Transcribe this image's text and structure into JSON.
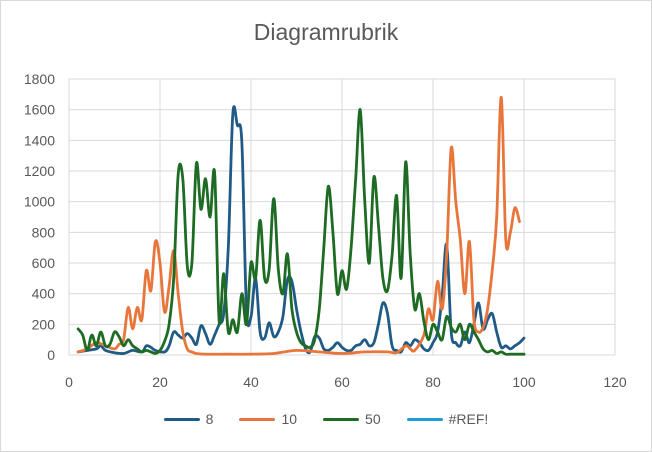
{
  "chart_data": {
    "type": "line",
    "title": "Diagramrubrik",
    "xlabel": "",
    "ylabel": "",
    "xlim": [
      0,
      120
    ],
    "ylim": [
      0,
      1800
    ],
    "x_ticks": [
      0,
      20,
      40,
      60,
      80,
      100,
      120
    ],
    "y_ticks": [
      0,
      200,
      400,
      600,
      800,
      1000,
      1200,
      1400,
      1600,
      1800
    ],
    "grid": "horizontal and vertical",
    "legend_position": "bottom",
    "smooth": true,
    "series": [
      {
        "name": "8",
        "color": "#1f5b86",
        "points": [
          [
            2,
            20
          ],
          [
            4,
            30
          ],
          [
            6,
            40
          ],
          [
            7,
            60
          ],
          [
            8,
            30
          ],
          [
            10,
            15
          ],
          [
            12,
            10
          ],
          [
            14,
            30
          ],
          [
            16,
            20
          ],
          [
            17,
            60
          ],
          [
            18,
            50
          ],
          [
            19,
            30
          ],
          [
            21,
            20
          ],
          [
            22,
            60
          ],
          [
            23,
            150
          ],
          [
            24,
            130
          ],
          [
            25,
            110
          ],
          [
            26,
            140
          ],
          [
            27,
            110
          ],
          [
            28,
            70
          ],
          [
            29,
            190
          ],
          [
            30,
            140
          ],
          [
            31,
            70
          ],
          [
            32,
            130
          ],
          [
            33,
            200
          ],
          [
            34,
            270
          ],
          [
            35,
            700
          ],
          [
            36,
            1570
          ],
          [
            37,
            1500
          ],
          [
            38,
            1380
          ],
          [
            39,
            300
          ],
          [
            40,
            250
          ],
          [
            41,
            500
          ],
          [
            42,
            150
          ],
          [
            43,
            110
          ],
          [
            44,
            210
          ],
          [
            45,
            120
          ],
          [
            46,
            150
          ],
          [
            47,
            250
          ],
          [
            48,
            490
          ],
          [
            49,
            480
          ],
          [
            50,
            300
          ],
          [
            51,
            150
          ],
          [
            52,
            40
          ],
          [
            53,
            20
          ],
          [
            54,
            120
          ],
          [
            55,
            110
          ],
          [
            56,
            40
          ],
          [
            57,
            30
          ],
          [
            58,
            50
          ],
          [
            59,
            80
          ],
          [
            60,
            50
          ],
          [
            61,
            30
          ],
          [
            62,
            30
          ],
          [
            63,
            60
          ],
          [
            64,
            70
          ],
          [
            65,
            100
          ],
          [
            66,
            60
          ],
          [
            67,
            80
          ],
          [
            68,
            200
          ],
          [
            69,
            340
          ],
          [
            70,
            270
          ],
          [
            71,
            60
          ],
          [
            72,
            30
          ],
          [
            73,
            20
          ],
          [
            74,
            80
          ],
          [
            75,
            60
          ],
          [
            76,
            100
          ],
          [
            77,
            80
          ],
          [
            78,
            40
          ],
          [
            79,
            30
          ],
          [
            80,
            80
          ],
          [
            81,
            150
          ],
          [
            82,
            380
          ],
          [
            83,
            720
          ],
          [
            84,
            150
          ],
          [
            85,
            80
          ],
          [
            86,
            60
          ],
          [
            87,
            150
          ],
          [
            88,
            80
          ],
          [
            89,
            200
          ],
          [
            90,
            340
          ],
          [
            91,
            170
          ],
          [
            92,
            230
          ],
          [
            93,
            270
          ],
          [
            94,
            150
          ],
          [
            95,
            50
          ],
          [
            96,
            60
          ],
          [
            97,
            40
          ],
          [
            98,
            60
          ],
          [
            99,
            80
          ],
          [
            100,
            110
          ]
        ]
      },
      {
        "name": "10",
        "color": "#e8763a",
        "points": [
          [
            2,
            20
          ],
          [
            4,
            40
          ],
          [
            6,
            80
          ],
          [
            8,
            60
          ],
          [
            10,
            40
          ],
          [
            11,
            70
          ],
          [
            12,
            100
          ],
          [
            13,
            310
          ],
          [
            14,
            170
          ],
          [
            15,
            310
          ],
          [
            16,
            230
          ],
          [
            17,
            550
          ],
          [
            18,
            420
          ],
          [
            19,
            740
          ],
          [
            20,
            600
          ],
          [
            21,
            280
          ],
          [
            22,
            450
          ],
          [
            23,
            680
          ],
          [
            24,
            400
          ],
          [
            25,
            150
          ],
          [
            26,
            40
          ],
          [
            27,
            20
          ],
          [
            28,
            10
          ],
          [
            30,
            5
          ],
          [
            35,
            5
          ],
          [
            40,
            5
          ],
          [
            45,
            10
          ],
          [
            50,
            30
          ],
          [
            55,
            20
          ],
          [
            60,
            10
          ],
          [
            65,
            20
          ],
          [
            70,
            20
          ],
          [
            72,
            15
          ],
          [
            74,
            60
          ],
          [
            75,
            40
          ],
          [
            76,
            30
          ],
          [
            78,
            130
          ],
          [
            79,
            300
          ],
          [
            80,
            230
          ],
          [
            81,
            480
          ],
          [
            82,
            300
          ],
          [
            83,
            650
          ],
          [
            84,
            1350
          ],
          [
            85,
            1000
          ],
          [
            86,
            750
          ],
          [
            87,
            400
          ],
          [
            88,
            740
          ],
          [
            89,
            230
          ],
          [
            90,
            150
          ],
          [
            91,
            180
          ],
          [
            92,
            300
          ],
          [
            93,
            550
          ],
          [
            94,
            900
          ],
          [
            95,
            1680
          ],
          [
            96,
            750
          ],
          [
            97,
            800
          ],
          [
            98,
            960
          ],
          [
            99,
            870
          ]
        ]
      },
      {
        "name": "50",
        "color": "#1e6b24",
        "points": [
          [
            2,
            170
          ],
          [
            3,
            130
          ],
          [
            4,
            30
          ],
          [
            5,
            130
          ],
          [
            6,
            60
          ],
          [
            7,
            150
          ],
          [
            8,
            60
          ],
          [
            9,
            70
          ],
          [
            10,
            150
          ],
          [
            11,
            120
          ],
          [
            12,
            60
          ],
          [
            13,
            100
          ],
          [
            14,
            60
          ],
          [
            15,
            40
          ],
          [
            16,
            20
          ],
          [
            17,
            30
          ],
          [
            18,
            20
          ],
          [
            19,
            10
          ],
          [
            20,
            30
          ],
          [
            21,
            90
          ],
          [
            22,
            200
          ],
          [
            23,
            500
          ],
          [
            24,
            1180
          ],
          [
            25,
            1150
          ],
          [
            26,
            580
          ],
          [
            27,
            600
          ],
          [
            28,
            1250
          ],
          [
            29,
            950
          ],
          [
            30,
            1150
          ],
          [
            31,
            900
          ],
          [
            32,
            1190
          ],
          [
            33,
            220
          ],
          [
            34,
            530
          ],
          [
            35,
            150
          ],
          [
            36,
            230
          ],
          [
            37,
            150
          ],
          [
            38,
            400
          ],
          [
            39,
            200
          ],
          [
            40,
            600
          ],
          [
            41,
            500
          ],
          [
            42,
            880
          ],
          [
            43,
            500
          ],
          [
            44,
            560
          ],
          [
            45,
            1020
          ],
          [
            46,
            560
          ],
          [
            47,
            400
          ],
          [
            48,
            660
          ],
          [
            49,
            300
          ],
          [
            50,
            150
          ],
          [
            51,
            80
          ],
          [
            52,
            60
          ],
          [
            53,
            50
          ],
          [
            54,
            100
          ],
          [
            55,
            300
          ],
          [
            56,
            700
          ],
          [
            57,
            1100
          ],
          [
            58,
            800
          ],
          [
            59,
            400
          ],
          [
            60,
            550
          ],
          [
            61,
            430
          ],
          [
            62,
            700
          ],
          [
            63,
            1150
          ],
          [
            64,
            1600
          ],
          [
            65,
            1000
          ],
          [
            66,
            600
          ],
          [
            67,
            1160
          ],
          [
            68,
            850
          ],
          [
            69,
            500
          ],
          [
            70,
            420
          ],
          [
            71,
            650
          ],
          [
            72,
            1040
          ],
          [
            73,
            500
          ],
          [
            74,
            1260
          ],
          [
            75,
            650
          ],
          [
            76,
            300
          ],
          [
            77,
            400
          ],
          [
            78,
            220
          ],
          [
            79,
            100
          ],
          [
            80,
            200
          ],
          [
            81,
            150
          ],
          [
            82,
            100
          ],
          [
            83,
            250
          ],
          [
            84,
            180
          ],
          [
            85,
            150
          ],
          [
            86,
            200
          ],
          [
            87,
            100
          ],
          [
            88,
            200
          ],
          [
            89,
            150
          ],
          [
            90,
            100
          ],
          [
            91,
            40
          ],
          [
            92,
            20
          ],
          [
            93,
            30
          ],
          [
            94,
            10
          ],
          [
            95,
            20
          ],
          [
            96,
            5
          ],
          [
            97,
            5
          ],
          [
            98,
            5
          ],
          [
            100,
            5
          ]
        ]
      },
      {
        "name": "#REF!",
        "color": "#1c9fd9",
        "points": []
      }
    ]
  }
}
